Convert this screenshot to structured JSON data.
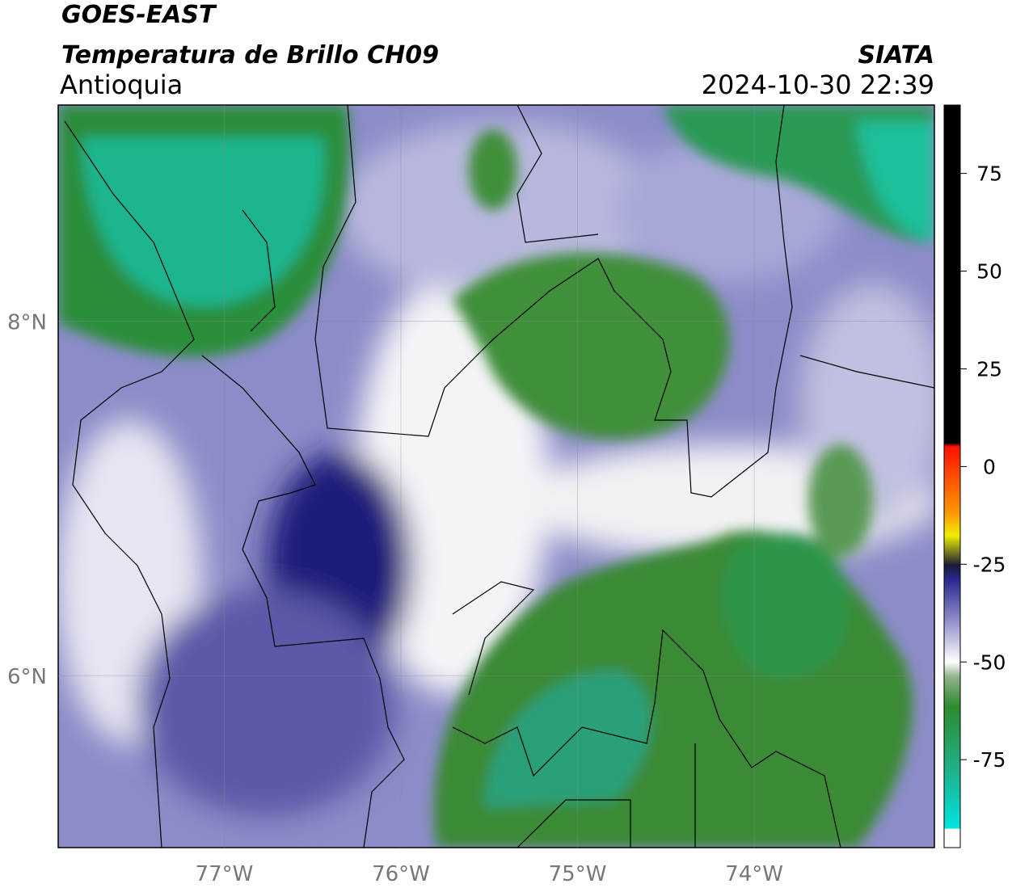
{
  "header": {
    "satellite": "GOES-EAST",
    "product": "Temperatura de Brillo CH09",
    "region": "Antioquia",
    "agency": "SIATA",
    "datetime": "2024-10-30 22:39"
  },
  "map": {
    "lon_range": [
      -77.94,
      -72.98
    ],
    "lat_range": [
      5.03,
      9.22
    ],
    "lon_ticks": [
      {
        "value": -77,
        "label": "77°W"
      },
      {
        "value": -76,
        "label": "76°W"
      },
      {
        "value": -75,
        "label": "75°W"
      },
      {
        "value": -74,
        "label": "74°W"
      }
    ],
    "lat_ticks": [
      {
        "value": 8,
        "label": "8°N"
      },
      {
        "value": 6,
        "label": "6°N"
      }
    ],
    "grid": true
  },
  "colorbar": {
    "range": [
      -97.5,
      92.5
    ],
    "ticks": [
      75,
      50,
      25,
      0,
      -25,
      -50,
      -75
    ]
  }
}
